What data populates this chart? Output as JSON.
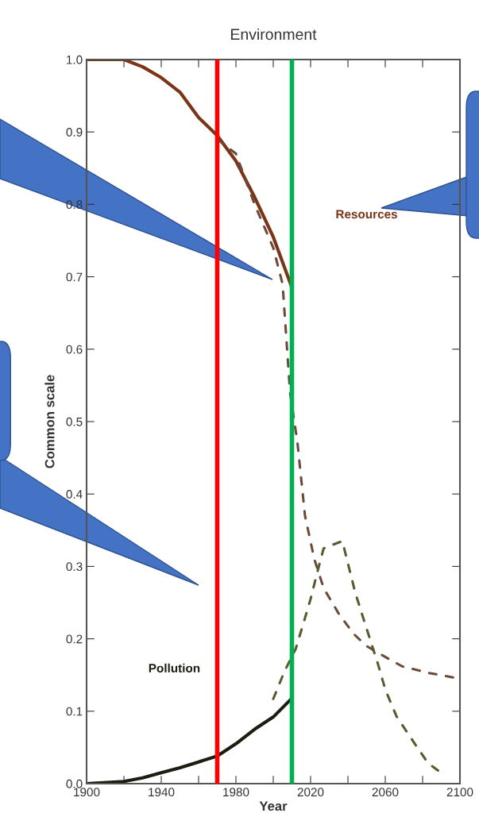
{
  "chart_data": {
    "type": "line",
    "title": "Environment",
    "xlabel": "Year",
    "ylabel": "Common scale",
    "xlim": [
      1900,
      2100
    ],
    "ylim": [
      0,
      1
    ],
    "xticks": [
      1900,
      {
        "value": 1920,
        "label": null
      },
      1940,
      {
        "value": 1960,
        "label": null
      },
      1980,
      {
        "value": 2000,
        "label": null
      },
      2020,
      {
        "value": 2040,
        "label": null
      },
      2060,
      {
        "value": 2080,
        "label": null
      },
      2100
    ],
    "yticks": [
      {
        "value": 0,
        "label": "0.0"
      },
      0.1,
      0.2,
      0.3,
      0.4,
      0.5,
      0.6,
      0.7,
      0.8,
      0.9,
      {
        "value": 1,
        "label": "1.0"
      }
    ],
    "grid": false,
    "legend": false,
    "series": [
      {
        "name": "Resources",
        "color": "#7a3518",
        "line_style": "solid",
        "x": [
          1900,
          1920,
          1930,
          1940,
          1950,
          1960,
          1970,
          1980,
          1990,
          2000,
          2010
        ],
        "values": [
          1.0,
          1.0,
          0.99,
          0.975,
          0.955,
          0.92,
          0.895,
          0.86,
          0.81,
          0.755,
          0.685
        ]
      },
      {
        "color": "#6b4a3a",
        "line_style": "dashed",
        "x": [
          1970,
          1980,
          1990,
          2000,
          2005,
          2009,
          2013,
          2017,
          2022,
          2027,
          2035,
          2043,
          2050,
          2060,
          2069,
          2083,
          2100
        ],
        "values": [
          0.89,
          0.87,
          0.8,
          0.74,
          0.69,
          0.54,
          0.47,
          0.37,
          0.31,
          0.27,
          0.235,
          0.207,
          0.19,
          0.175,
          0.162,
          0.153,
          0.145
        ]
      },
      {
        "name": "Pollution",
        "color": "#1c1c10",
        "line_style": "solid",
        "x": [
          1900,
          1920,
          1930,
          1940,
          1950,
          1960,
          1970,
          1980,
          1990,
          2000,
          2010
        ],
        "values": [
          0.0,
          0.003,
          0.008,
          0.015,
          0.022,
          0.03,
          0.038,
          0.055,
          0.075,
          0.092,
          0.118
        ]
      },
      {
        "color": "#5a5a30",
        "line_style": "dashed",
        "x": [
          2000,
          2006,
          2012,
          2016,
          2020,
          2024,
          2027,
          2037,
          2044,
          2052,
          2056,
          2060,
          2066,
          2074,
          2083,
          2090
        ],
        "values": [
          0.117,
          0.155,
          0.186,
          0.22,
          0.255,
          0.296,
          0.325,
          0.335,
          0.263,
          0.198,
          0.166,
          0.13,
          0.093,
          0.062,
          0.028,
          0.015
        ]
      }
    ],
    "ref_lines": [
      {
        "axis": "x",
        "value": 1970,
        "color": "#ff0000"
      },
      {
        "axis": "x",
        "value": 2010,
        "color": "#00b050"
      }
    ]
  }
}
